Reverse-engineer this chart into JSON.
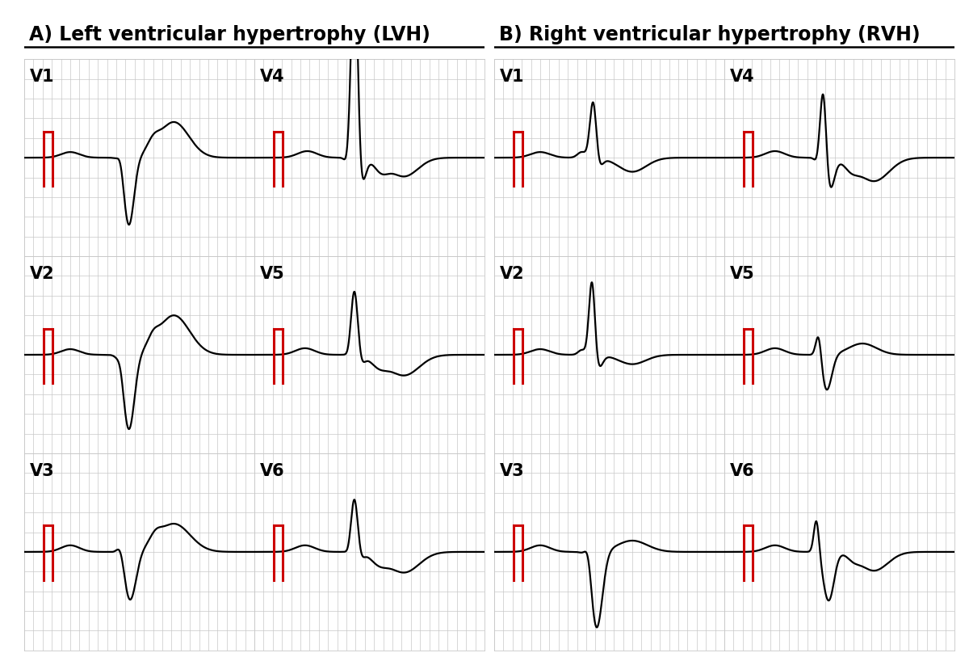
{
  "title_left": "A) Left ventricular hypertrophy (LVH)",
  "title_right": "B) Right ventricular hypertrophy (RVH)",
  "title_fontsize": 17,
  "grid_color": "#c8c8c8",
  "bg_color": "#ffffff",
  "ecg_color": "#000000",
  "marker_color": "#cc0000",
  "lead_labels_left": [
    "V1",
    "V4",
    "V2",
    "V5",
    "V3",
    "V6"
  ],
  "lead_labels_right": [
    "V1",
    "V4",
    "V2",
    "V5",
    "V3",
    "V6"
  ],
  "lead_styles_lvh": [
    "lvh_v1",
    "lvh_v4",
    "lvh_v2",
    "lvh_v5",
    "lvh_v3",
    "lvh_v6"
  ],
  "lead_styles_rvh": [
    "rvh_v1",
    "rvh_v4",
    "rvh_v2",
    "rvh_v5",
    "rvh_v3",
    "rvh_v6"
  ]
}
